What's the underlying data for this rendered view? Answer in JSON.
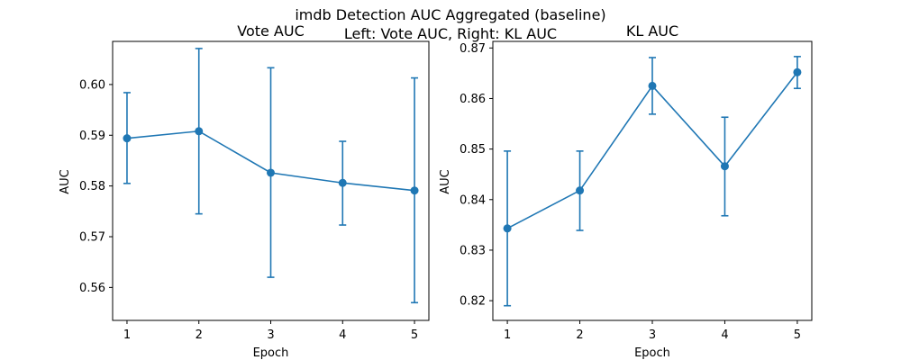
{
  "figure": {
    "suptitle_line1": "imdb Detection AUC Aggregated (baseline)",
    "suptitle_line2": "Left: Vote AUC, Right: KL AUC"
  },
  "chart_data": [
    {
      "type": "line",
      "title": "Vote AUC",
      "xlabel": "Epoch",
      "ylabel": "AUC",
      "x": [
        1,
        2,
        3,
        4,
        5
      ],
      "xticks": [
        "1",
        "2",
        "3",
        "4",
        "5"
      ],
      "xlim": [
        0.8,
        5.2
      ],
      "ylim": [
        0.5535,
        0.6085
      ],
      "yticks": [
        "0.56",
        "0.57",
        "0.58",
        "0.59",
        "0.60"
      ],
      "ytick_values": [
        0.56,
        0.57,
        0.58,
        0.59,
        0.6
      ],
      "series": [
        {
          "values": [
            0.5894,
            0.5908,
            0.5826,
            0.5806,
            0.5791
          ],
          "err_low": [
            0.5805,
            0.5745,
            0.562,
            0.5723,
            0.557
          ],
          "err_high": [
            0.5984,
            0.6071,
            0.6033,
            0.5888,
            0.6013
          ],
          "color": "#1f77b4"
        }
      ]
    },
    {
      "type": "line",
      "title": "KL AUC",
      "xlabel": "Epoch",
      "ylabel": "AUC",
      "x": [
        1,
        2,
        3,
        4,
        5
      ],
      "xticks": [
        "1",
        "2",
        "3",
        "4",
        "5"
      ],
      "xlim": [
        0.8,
        5.2
      ],
      "ylim": [
        0.8161,
        0.8713
      ],
      "yticks": [
        "0.82",
        "0.83",
        "0.84",
        "0.85",
        "0.86",
        "0.87"
      ],
      "ytick_values": [
        0.82,
        0.83,
        0.84,
        0.85,
        0.86,
        0.87
      ],
      "series": [
        {
          "values": [
            0.8343,
            0.8418,
            0.8625,
            0.8466,
            0.8652
          ],
          "err_low": [
            0.819,
            0.8339,
            0.8569,
            0.8368,
            0.862
          ],
          "err_high": [
            0.8496,
            0.8496,
            0.8681,
            0.8563,
            0.8683
          ],
          "color": "#1f77b4"
        }
      ]
    }
  ]
}
